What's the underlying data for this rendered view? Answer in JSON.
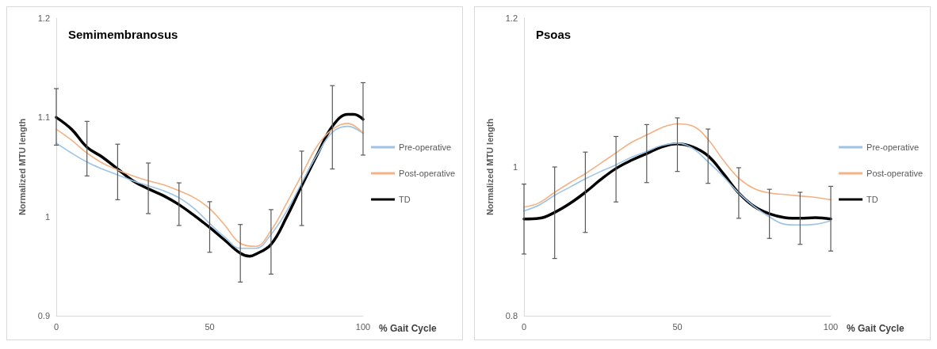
{
  "chart_data": [
    {
      "type": "line",
      "title": "Semimembranosus",
      "xlabel": "% Gait Cycle",
      "ylabel": "Normalized MTU length",
      "xlim": [
        0,
        100
      ],
      "xticks": [
        0,
        50,
        100
      ],
      "ylim": [
        0.9,
        1.2
      ],
      "yticks": [
        0.9,
        1,
        1.1,
        1.2
      ],
      "grid": false,
      "legend": "right",
      "marker": "none",
      "line_style": "solid",
      "x": [
        0,
        5,
        10,
        15,
        20,
        25,
        30,
        35,
        40,
        45,
        50,
        55,
        60,
        65,
        70,
        75,
        80,
        85,
        90,
        95,
        100
      ],
      "series": [
        {
          "name": "Pre-operative",
          "color": "#9dc3e6",
          "values": [
            1.074,
            1.064,
            1.055,
            1.048,
            1.042,
            1.036,
            1.031,
            1.026,
            1.019,
            1.008,
            0.993,
            0.979,
            0.968,
            0.968,
            0.982,
            1.005,
            1.034,
            1.062,
            1.085,
            1.091,
            1.084
          ]
        },
        {
          "name": "Post-operative",
          "color": "#f4b183",
          "values": [
            1.088,
            1.077,
            1.064,
            1.054,
            1.047,
            1.041,
            1.036,
            1.032,
            1.026,
            1.019,
            1.008,
            0.991,
            0.973,
            0.97,
            0.986,
            1.013,
            1.042,
            1.071,
            1.088,
            1.094,
            1.084
          ]
        },
        {
          "name": "TD",
          "color": "#000000",
          "x": [
            0,
            5,
            10,
            15,
            20,
            25,
            30,
            35,
            40,
            45,
            50,
            55,
            60,
            63,
            65,
            70,
            75,
            80,
            85,
            90,
            95,
            97,
            100
          ],
          "values": [
            1.1,
            1.088,
            1.07,
            1.06,
            1.048,
            1.036,
            1.028,
            1.021,
            1.012,
            1.001,
            0.989,
            0.976,
            0.963,
            0.96,
            0.962,
            0.972,
            0.999,
            1.031,
            1.062,
            1.091,
            1.103,
            1.103,
            1.098
          ],
          "errors": [
            [
              1.072,
              1.129
            ],
            null,
            [
              1.041,
              1.096
            ],
            null,
            [
              1.017,
              1.073
            ],
            null,
            [
              1.003,
              1.054
            ],
            null,
            [
              0.991,
              1.034
            ],
            null,
            [
              0.964,
              1.015
            ],
            null,
            [
              0.934,
              0.992
            ],
            null,
            null,
            [
              0.942,
              1.007
            ],
            null,
            [
              0.991,
              1.066
            ],
            null,
            [
              1.048,
              1.132
            ],
            null,
            null,
            [
              1.062,
              1.135
            ]
          ]
        }
      ]
    },
    {
      "type": "line",
      "title": "Psoas",
      "xlabel": "% Gait Cycle",
      "ylabel": "Normalized MTU length",
      "xlim": [
        0,
        100
      ],
      "xticks": [
        0,
        50,
        100
      ],
      "ylim": [
        0.8,
        1.2
      ],
      "yticks": [
        0.8,
        1,
        1.2
      ],
      "grid": false,
      "legend": "right",
      "marker": "none",
      "line_style": "solid",
      "x": [
        0,
        5,
        10,
        15,
        20,
        25,
        30,
        35,
        40,
        45,
        50,
        55,
        60,
        65,
        70,
        75,
        80,
        85,
        90,
        95,
        100
      ],
      "series": [
        {
          "name": "Pre-operative",
          "color": "#9dc3e6",
          "values": [
            0.941,
            0.949,
            0.962,
            0.973,
            0.984,
            0.994,
            1.003,
            1.013,
            1.021,
            1.029,
            1.032,
            1.025,
            1.007,
            0.987,
            0.965,
            0.947,
            0.933,
            0.923,
            0.922,
            0.923,
            0.928
          ]
        },
        {
          "name": "Post-operative",
          "color": "#f4b183",
          "values": [
            0.946,
            0.952,
            0.966,
            0.979,
            0.991,
            1.005,
            1.019,
            1.033,
            1.043,
            1.053,
            1.058,
            1.055,
            1.037,
            1.009,
            0.985,
            0.971,
            0.965,
            0.963,
            0.961,
            0.959,
            0.956
          ]
        },
        {
          "name": "TD",
          "color": "#000000",
          "values": [
            0.93,
            0.931,
            0.939,
            0.951,
            0.966,
            0.983,
            0.998,
            1.009,
            1.018,
            1.027,
            1.031,
            1.027,
            1.015,
            0.991,
            0.965,
            0.947,
            0.937,
            0.932,
            0.931,
            0.932,
            0.93
          ],
          "errors": [
            [
              0.883,
              0.977
            ],
            null,
            [
              0.877,
              1.0
            ],
            null,
            [
              0.912,
              1.02
            ],
            null,
            [
              0.953,
              1.041
            ],
            null,
            [
              0.979,
              1.057
            ],
            null,
            [
              0.994,
              1.066
            ],
            null,
            [
              0.978,
              1.051
            ],
            null,
            [
              0.931,
              0.999
            ],
            null,
            [
              0.904,
              0.97
            ],
            null,
            [
              0.896,
              0.966
            ],
            null,
            [
              0.887,
              0.974
            ]
          ]
        }
      ]
    }
  ]
}
